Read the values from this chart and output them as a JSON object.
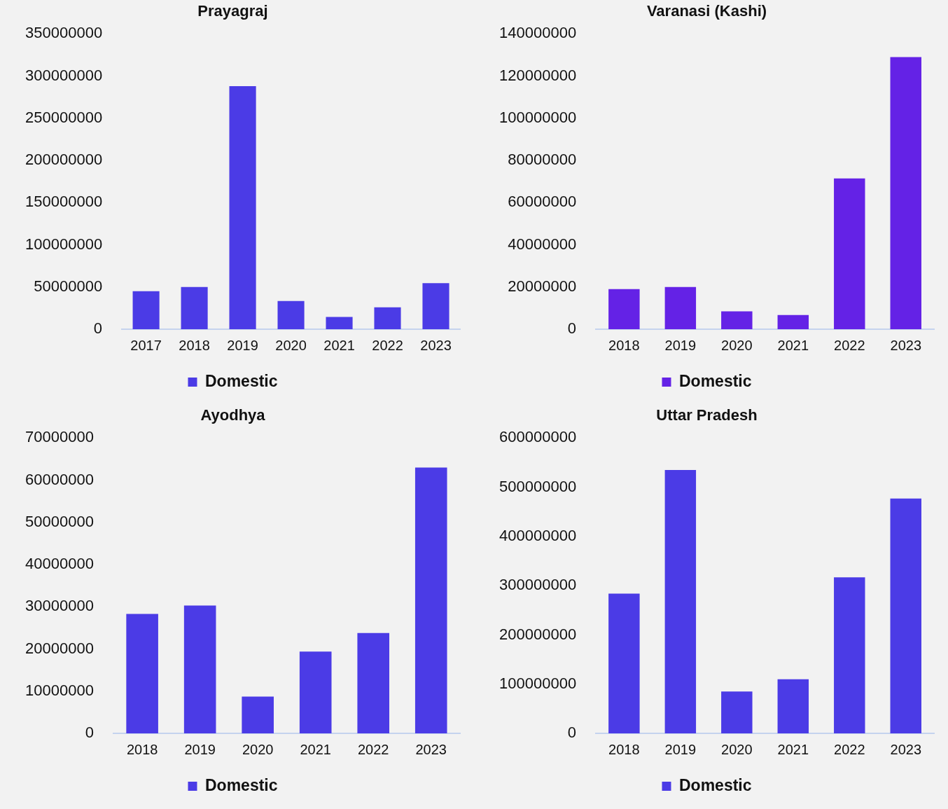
{
  "chart_data": [
    {
      "type": "bar",
      "title": "Prayagraj",
      "categories": [
        "2017",
        "2018",
        "2019",
        "2020",
        "2021",
        "2022",
        "2023"
      ],
      "series": [
        {
          "name": "Domestic",
          "color": "#4b3be6",
          "values": [
            45000000,
            50000000,
            288000000,
            33500000,
            14500000,
            26000000,
            54500000
          ]
        }
      ],
      "ylim": [
        0,
        350000000
      ],
      "yticks": [
        0,
        50000000,
        100000000,
        150000000,
        200000000,
        250000000,
        300000000,
        350000000
      ],
      "grid": false,
      "legend": "bottom"
    },
    {
      "type": "bar",
      "title": "Varanasi (Kashi)",
      "categories": [
        "2018",
        "2019",
        "2020",
        "2021",
        "2022",
        "2023"
      ],
      "series": [
        {
          "name": "Domestic",
          "color": "#6422e6",
          "values": [
            19000000,
            20000000,
            8500000,
            6700000,
            71500000,
            129000000
          ]
        }
      ],
      "ylim": [
        0,
        140000000
      ],
      "yticks": [
        0,
        20000000,
        40000000,
        60000000,
        80000000,
        100000000,
        120000000,
        140000000
      ],
      "grid": false,
      "legend": "bottom"
    },
    {
      "type": "bar",
      "title": "Ayodhya",
      "categories": [
        "2018",
        "2019",
        "2020",
        "2021",
        "2022",
        "2023"
      ],
      "series": [
        {
          "name": "Domestic",
          "color": "#4b3be6",
          "values": [
            28300000,
            30300000,
            8700000,
            19400000,
            23800000,
            63000000
          ]
        }
      ],
      "ylim": [
        0,
        70000000
      ],
      "yticks": [
        0,
        10000000,
        20000000,
        30000000,
        40000000,
        50000000,
        60000000,
        70000000
      ],
      "grid": false,
      "legend": "bottom"
    },
    {
      "type": "bar",
      "title": "Uttar Pradesh",
      "categories": [
        "2018",
        "2019",
        "2020",
        "2021",
        "2022",
        "2023"
      ],
      "series": [
        {
          "name": "Domestic",
          "color": "#4b3be6",
          "values": [
            284000000,
            535000000,
            85000000,
            110000000,
            317000000,
            477000000
          ]
        }
      ],
      "ylim": [
        0,
        600000000
      ],
      "yticks": [
        0,
        100000000,
        200000000,
        300000000,
        400000000,
        500000000,
        600000000
      ],
      "grid": false,
      "legend": "bottom"
    }
  ]
}
